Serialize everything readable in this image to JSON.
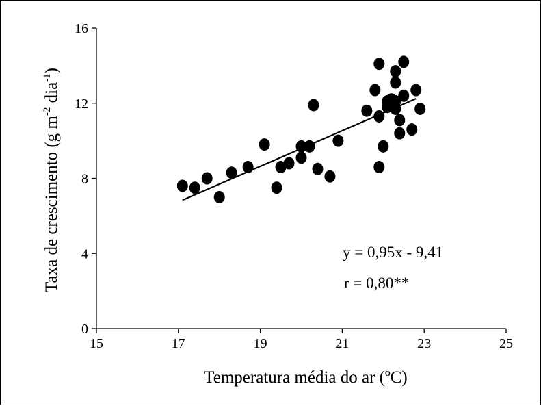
{
  "chart_data": {
    "type": "scatter",
    "xlabel": "Temperatura média do ar (ºC)",
    "ylabel_main": "Taxa de crescimento (g m",
    "ylabel_sup1": "-2",
    "ylabel_mid": " dia",
    "ylabel_sup2": "-1",
    "ylabel_end": ")",
    "xlim": [
      15,
      25
    ],
    "ylim": [
      0,
      16
    ],
    "xticks": [
      "15",
      "17",
      "19",
      "21",
      "23",
      "25"
    ],
    "yticks": [
      "0",
      "4",
      "8",
      "12",
      "16"
    ],
    "grid": false,
    "points": [
      {
        "x": 17.1,
        "y": 7.6
      },
      {
        "x": 17.4,
        "y": 7.5
      },
      {
        "x": 17.7,
        "y": 8.0
      },
      {
        "x": 18.0,
        "y": 7.0
      },
      {
        "x": 18.3,
        "y": 8.3
      },
      {
        "x": 18.7,
        "y": 8.6
      },
      {
        "x": 19.1,
        "y": 9.8
      },
      {
        "x": 19.4,
        "y": 7.5
      },
      {
        "x": 19.5,
        "y": 8.6
      },
      {
        "x": 19.7,
        "y": 8.8
      },
      {
        "x": 20.0,
        "y": 9.7
      },
      {
        "x": 20.0,
        "y": 9.1
      },
      {
        "x": 20.2,
        "y": 9.7
      },
      {
        "x": 20.3,
        "y": 11.9
      },
      {
        "x": 20.4,
        "y": 8.5
      },
      {
        "x": 20.7,
        "y": 8.1
      },
      {
        "x": 20.9,
        "y": 10.0
      },
      {
        "x": 21.6,
        "y": 11.6
      },
      {
        "x": 21.8,
        "y": 12.7
      },
      {
        "x": 21.9,
        "y": 14.1
      },
      {
        "x": 21.9,
        "y": 11.3
      },
      {
        "x": 21.9,
        "y": 8.6
      },
      {
        "x": 22.0,
        "y": 9.7
      },
      {
        "x": 22.1,
        "y": 11.8
      },
      {
        "x": 22.1,
        "y": 12.1
      },
      {
        "x": 22.2,
        "y": 12.2
      },
      {
        "x": 22.2,
        "y": 11.9
      },
      {
        "x": 22.3,
        "y": 13.7
      },
      {
        "x": 22.3,
        "y": 13.1
      },
      {
        "x": 22.3,
        "y": 12.1
      },
      {
        "x": 22.3,
        "y": 11.7
      },
      {
        "x": 22.4,
        "y": 10.4
      },
      {
        "x": 22.4,
        "y": 11.1
      },
      {
        "x": 22.5,
        "y": 14.2
      },
      {
        "x": 22.5,
        "y": 12.4
      },
      {
        "x": 22.7,
        "y": 10.6
      },
      {
        "x": 22.8,
        "y": 12.7
      },
      {
        "x": 22.9,
        "y": 11.7
      }
    ],
    "trendline": {
      "x": [
        17.1,
        22.8
      ],
      "y": [
        6.84,
        12.24
      ]
    },
    "annotations": [
      "y = 0,95x - 9,41",
      "r = 0,80**"
    ],
    "marker_color": "#000000"
  }
}
